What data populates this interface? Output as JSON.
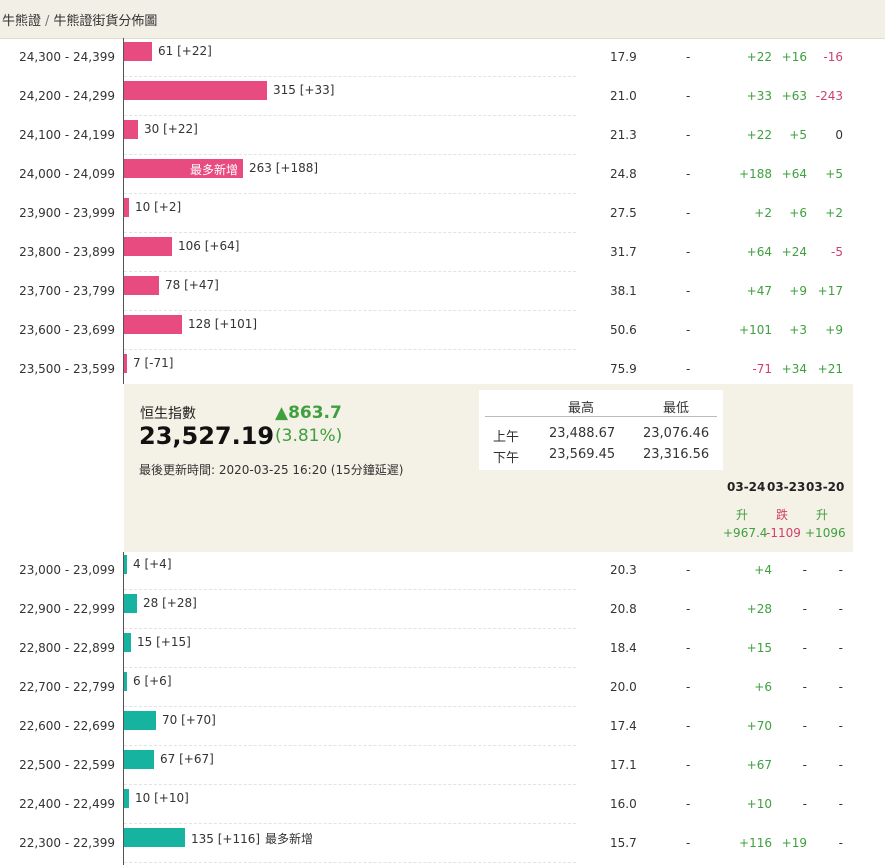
{
  "breadcrumb": {
    "root": "牛熊證",
    "separator": "/",
    "current": "牛熊證街貨分佈圖"
  },
  "colors": {
    "bull": "#e84b7f",
    "bear": "#17b3a1",
    "up": "#3ea03e",
    "down": "#d0406a"
  },
  "bull_rows": [
    {
      "range": "24,300 - 24,399",
      "qty": 61,
      "text": "61 [+22]",
      "tag": "",
      "ratio": "17.9",
      "dash": "-",
      "d1": "+22",
      "d2": "+16",
      "d3": "-16"
    },
    {
      "range": "24,200 - 24,299",
      "qty": 315,
      "text": "315 [+33]",
      "tag": "",
      "ratio": "21.0",
      "dash": "-",
      "d1": "+33",
      "d2": "+63",
      "d3": "-243"
    },
    {
      "range": "24,100 - 24,199",
      "qty": 30,
      "text": "30 [+22]",
      "tag": "",
      "ratio": "21.3",
      "dash": "-",
      "d1": "+22",
      "d2": "+5",
      "d3": "0"
    },
    {
      "range": "24,000 - 24,099",
      "qty": 263,
      "text": "263 [+188]",
      "tag": "最多新增",
      "ratio": "24.8",
      "dash": "-",
      "d1": "+188",
      "d2": "+64",
      "d3": "+5"
    },
    {
      "range": "23,900 - 23,999",
      "qty": 10,
      "text": "10 [+2]",
      "tag": "",
      "ratio": "27.5",
      "dash": "-",
      "d1": "+2",
      "d2": "+6",
      "d3": "+2"
    },
    {
      "range": "23,800 - 23,899",
      "qty": 106,
      "text": "106 [+64]",
      "tag": "",
      "ratio": "31.7",
      "dash": "-",
      "d1": "+64",
      "d2": "+24",
      "d3": "-5"
    },
    {
      "range": "23,700 - 23,799",
      "qty": 78,
      "text": "78 [+47]",
      "tag": "",
      "ratio": "38.1",
      "dash": "-",
      "d1": "+47",
      "d2": "+9",
      "d3": "+17"
    },
    {
      "range": "23,600 - 23,699",
      "qty": 128,
      "text": "128 [+101]",
      "tag": "",
      "ratio": "50.6",
      "dash": "-",
      "d1": "+101",
      "d2": "+3",
      "d3": "+9"
    },
    {
      "range": "23,500 - 23,599",
      "qty": 7,
      "text": "7 [-71]",
      "tag": "",
      "ratio": "75.9",
      "dash": "-",
      "d1": "-71",
      "d2": "+34",
      "d3": "+21"
    }
  ],
  "index": {
    "name": "恒生指數",
    "value": "23,527.19",
    "change": "▲863.7",
    "change_pct": "(3.81%)",
    "updated": "最後更新時間: 2020-03-25 16:20 (15分鐘延遲)",
    "hl_headers": [
      "最高",
      "最低"
    ],
    "sessions": [
      {
        "label": "上午",
        "high": "23,488.67",
        "low": "23,076.46"
      },
      {
        "label": "下午",
        "high": "23,569.45",
        "low": "23,316.56"
      }
    ],
    "dates": [
      {
        "date": "03-24",
        "dir": "升",
        "val": "+967.4",
        "color": "#3ea03e"
      },
      {
        "date": "03-23",
        "dir": "跌",
        "val": "-1109",
        "color": "#d0406a"
      },
      {
        "date": "03-20",
        "dir": "升",
        "val": "+1096",
        "color": "#3ea03e"
      }
    ]
  },
  "bear_rows": [
    {
      "range": "23,000 - 23,099",
      "qty": 4,
      "text": "4 [+4]",
      "tag": "",
      "ratio": "20.3",
      "dash": "-",
      "d1": "+4",
      "d2": "-",
      "d3": "-"
    },
    {
      "range": "22,900 - 22,999",
      "qty": 28,
      "text": "28 [+28]",
      "tag": "",
      "ratio": "20.8",
      "dash": "-",
      "d1": "+28",
      "d2": "-",
      "d3": "-"
    },
    {
      "range": "22,800 - 22,899",
      "qty": 15,
      "text": "15 [+15]",
      "tag": "",
      "ratio": "18.4",
      "dash": "-",
      "d1": "+15",
      "d2": "-",
      "d3": "-"
    },
    {
      "range": "22,700 - 22,799",
      "qty": 6,
      "text": "6 [+6]",
      "tag": "",
      "ratio": "20.0",
      "dash": "-",
      "d1": "+6",
      "d2": "-",
      "d3": "-"
    },
    {
      "range": "22,600 - 22,699",
      "qty": 70,
      "text": "70 [+70]",
      "tag": "",
      "ratio": "17.4",
      "dash": "-",
      "d1": "+70",
      "d2": "-",
      "d3": "-"
    },
    {
      "range": "22,500 - 22,599",
      "qty": 67,
      "text": "67 [+67]",
      "tag": "",
      "ratio": "17.1",
      "dash": "-",
      "d1": "+67",
      "d2": "-",
      "d3": "-"
    },
    {
      "range": "22,400 - 22,499",
      "qty": 10,
      "text": "10 [+10]",
      "tag": "",
      "ratio": "16.0",
      "dash": "-",
      "d1": "+10",
      "d2": "-",
      "d3": "-"
    },
    {
      "range": "22,300 - 22,399",
      "qty": 135,
      "text": "135 [+116]",
      "tag": "最多新增",
      "ratio": "15.7",
      "dash": "-",
      "d1": "+116",
      "d2": "+19",
      "d3": "-"
    }
  ]
}
